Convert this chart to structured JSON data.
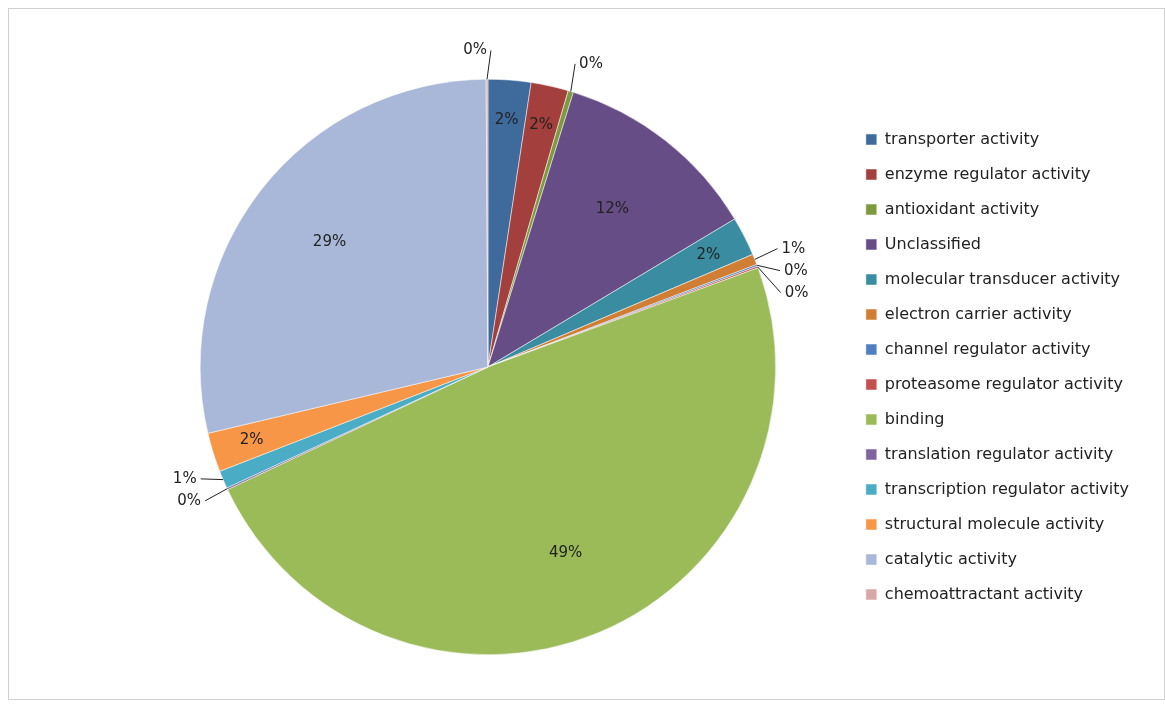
{
  "chart_data": {
    "type": "pie",
    "categories": [
      "transporter activity",
      "enzyme regulator activity",
      "antioxidant activity",
      "Unclassified",
      "molecular transducer activity",
      "electron carrier activity",
      "channel regulator activity",
      "proteasome regulator activity",
      "binding",
      "translation regulator activity",
      "transcription regulator activity",
      "structural molecule activity",
      "catalytic activity",
      "chemoattractant activity"
    ],
    "values": [
      2.4,
      2.1,
      0.3,
      11.6,
      2.2,
      0.6,
      0.1,
      0.1,
      48.6,
      0.1,
      1.0,
      2.2,
      28.6,
      0.1
    ],
    "value_labels": [
      "2%",
      "2%",
      "0%",
      "12%",
      "2%",
      "1%",
      "0%",
      "0%",
      "49%",
      "0%",
      "1%",
      "2%",
      "29%",
      "0%"
    ],
    "colors": [
      "#3e6a9c",
      "#a33f3c",
      "#7e9a3f",
      "#674d85",
      "#3a8da0",
      "#d17e35",
      "#4f7fc1",
      "#c4504d",
      "#9bbb59",
      "#8064a2",
      "#4bacc6",
      "#f79646",
      "#a9b8d8",
      "#d9a7a7"
    ],
    "legend": "right"
  }
}
